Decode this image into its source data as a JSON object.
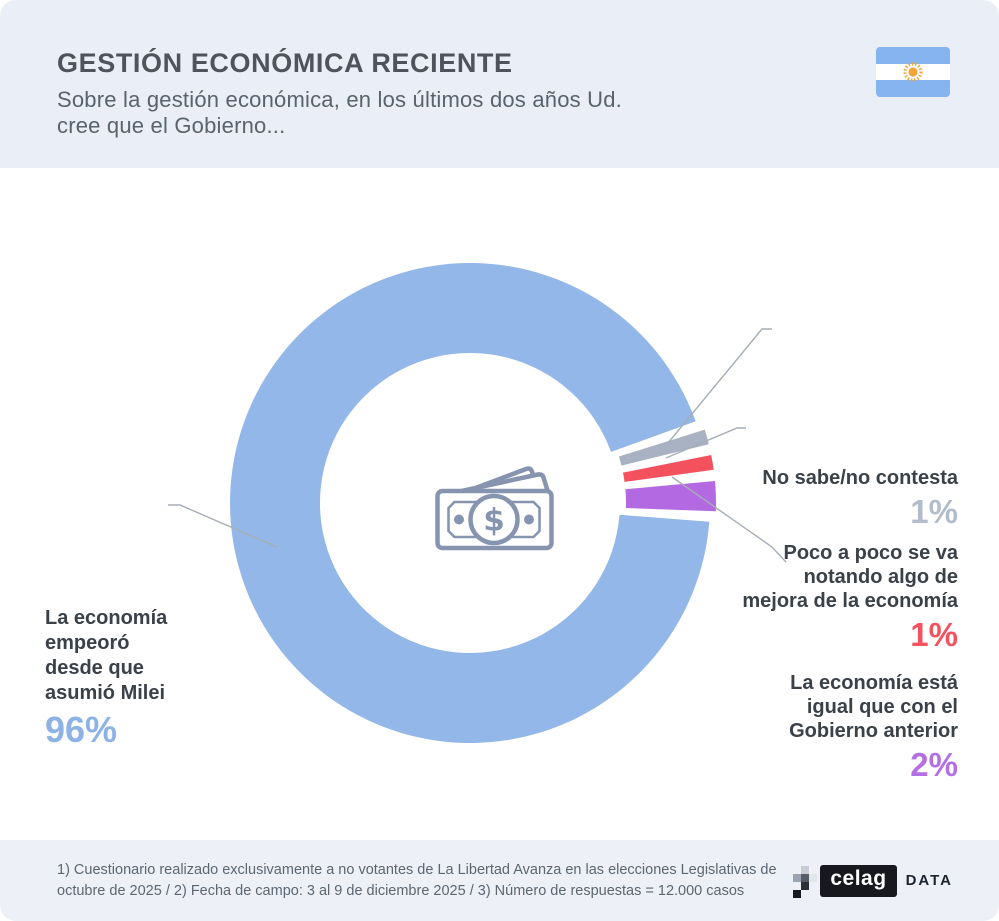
{
  "header": {
    "title": "GESTIÓN ECONÓMICA RECIENTE",
    "subtitle_line1": "Sobre la gestión económica, en los últimos dos años Ud.",
    "subtitle_line2": "cree que el Gobierno..."
  },
  "chart_data": {
    "type": "pie",
    "variant": "donut",
    "title": "GESTIÓN ECONÓMICA RECIENTE",
    "question": "Sobre la gestión económica, en los últimos dos años Ud. cree que el Gobierno...",
    "legend_position": "callout-labels",
    "center_icon": "money-banknotes",
    "segments": [
      {
        "label": "La economía empeoró desde que asumió Milei",
        "value_pct": 96,
        "color": "#92b7e8"
      },
      {
        "label": "No sabe/no contesta",
        "value_pct": 1,
        "color": "#a9b2c3"
      },
      {
        "label": "Poco a poco se va notando algo de mejora de la economía",
        "value_pct": 1,
        "color": "#f4515f"
      },
      {
        "label": "La economía está igual que con el Gobierno anterior",
        "value_pct": 2,
        "color": "#b269e2"
      }
    ]
  },
  "labels": {
    "main": {
      "lines": [
        "La economía",
        "empeoró",
        "desde que",
        "asumió Milei"
      ],
      "pct": "96%",
      "pct_color": "#8cb2e6"
    },
    "gray": {
      "lines": [
        "No sabe/no contesta"
      ],
      "pct": "1%",
      "pct_color": "#b3bccc"
    },
    "red": {
      "lines": [
        "Poco a poco se va",
        "notando algo de",
        "mejora de la economía"
      ],
      "pct": "1%",
      "pct_color": "#f4525f"
    },
    "purple": {
      "lines": [
        "La economía está",
        "igual que con el",
        "Gobierno anterior"
      ],
      "pct": "2%",
      "pct_color": "#b36fe4"
    }
  },
  "footer": {
    "note_line1": "1) Cuestionario realizado exclusivamente a no votantes de La Libertad Avanza en las elecciones Legislativas de",
    "note_line2": "octubre de 2025  /  2) Fecha de campo: 3 al 9 de diciembre 2025 /  3) Número de respuestas = 12.000 casos",
    "logo_text": "celag",
    "logo_suffix": "DATA"
  },
  "colors": {
    "header_bg": "#e9eef7",
    "footer_bg": "#edf1f7",
    "title_text": "#4e545b",
    "label_text": "#3b4148",
    "leader_line": "#a6adb6",
    "icon_stroke": "#8794b0",
    "flag_blue": "#85b4f0",
    "flag_sun": "#f0a63c"
  }
}
